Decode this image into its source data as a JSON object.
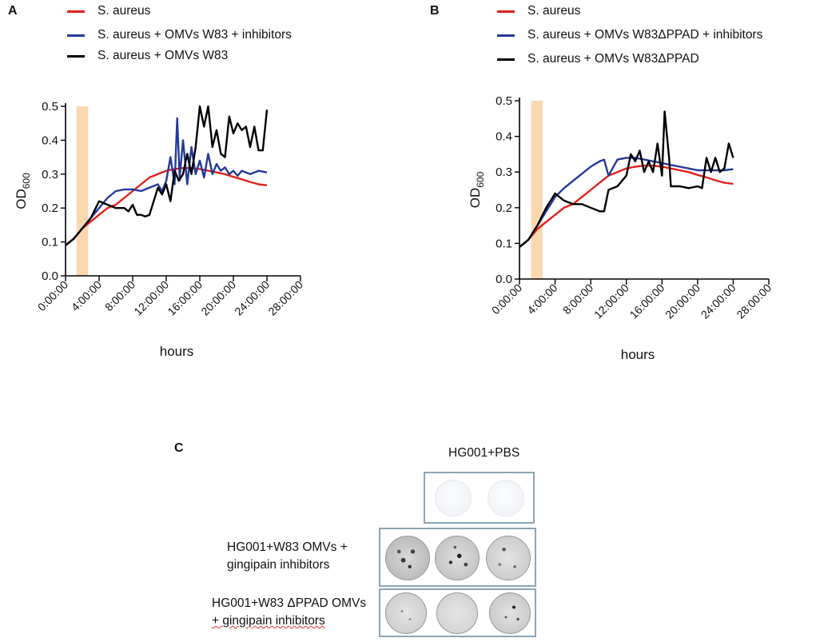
{
  "panels": [
    {
      "label": "A",
      "legend": [
        {
          "name": "S. aureus",
          "color": "#e0201c"
        },
        {
          "name": "S. aureus + OMVs W83 +  inhibitors",
          "color": "#24399a"
        },
        {
          "name": "S. aureus + OMVs W83",
          "color": "#000000"
        }
      ]
    },
    {
      "label": "B",
      "legend": [
        {
          "name": "S. aureus",
          "color": "#e0201c"
        },
        {
          "name": "S. aureus + OMVs W83ΔPPAD +  inhibitors",
          "color": "#24399a"
        },
        {
          "name": "S. aureus + OMVs W83ΔPPAD",
          "color": "#000000"
        }
      ]
    }
  ],
  "chart_data": [
    {
      "type": "line",
      "panel": "A",
      "title": "",
      "xlabel": "hours",
      "ylabel": "OD",
      "ylabel_sub": "600",
      "xlim": [
        0,
        28
      ],
      "ylim": [
        0,
        0.5
      ],
      "xticks": [
        0,
        4,
        8,
        12,
        16,
        20,
        24,
        28
      ],
      "xtick_labels": [
        "0:00:00",
        "4:00:00",
        "8:00:00",
        "12:00:00",
        "16:00:00",
        "20:00:00",
        "24:00:00",
        "28:00:00"
      ],
      "yticks": [
        0.0,
        0.1,
        0.2,
        0.3,
        0.4,
        0.5
      ],
      "ytick_labels": [
        "0.0",
        "0.1",
        "0.2",
        "0.3",
        "0.4",
        "0.5"
      ],
      "highlight_band": {
        "x_start": 1.3,
        "x_end": 2.7,
        "color": "#fbd8b0"
      },
      "series": [
        {
          "name": "S. aureus",
          "color": "#e0201c",
          "x": [
            0,
            1,
            2,
            3,
            4,
            5,
            6,
            7,
            8,
            9,
            10,
            11,
            12,
            13,
            14,
            15,
            16,
            17,
            18,
            19,
            20,
            21,
            22,
            23,
            24
          ],
          "y": [
            0.09,
            0.11,
            0.14,
            0.16,
            0.18,
            0.2,
            0.21,
            0.23,
            0.25,
            0.27,
            0.29,
            0.3,
            0.31,
            0.315,
            0.318,
            0.318,
            0.315,
            0.31,
            0.305,
            0.3,
            0.292,
            0.285,
            0.277,
            0.27,
            0.267
          ]
        },
        {
          "name": "S. aureus + OMVs W83 +  inhibitors",
          "color": "#24399a",
          "x": [
            0,
            1,
            2,
            3,
            4,
            5,
            6,
            7,
            8,
            9,
            10,
            11,
            11.5,
            12,
            12.5,
            13,
            13.3,
            13.6,
            14,
            14.5,
            15,
            15.5,
            16,
            16.5,
            17,
            17.5,
            18,
            18.5,
            19,
            19.5,
            20,
            20.5,
            21,
            22,
            23,
            24
          ],
          "y": [
            0.09,
            0.11,
            0.14,
            0.17,
            0.2,
            0.23,
            0.25,
            0.255,
            0.255,
            0.25,
            0.26,
            0.27,
            0.25,
            0.28,
            0.35,
            0.27,
            0.465,
            0.29,
            0.4,
            0.27,
            0.38,
            0.3,
            0.34,
            0.29,
            0.36,
            0.3,
            0.33,
            0.31,
            0.32,
            0.3,
            0.31,
            0.295,
            0.31,
            0.3,
            0.31,
            0.305
          ]
        },
        {
          "name": "S. aureus + OMVs W83",
          "color": "#000000",
          "x": [
            0,
            1,
            2,
            3,
            4,
            5,
            6,
            7,
            7.5,
            8,
            8.5,
            9,
            9.5,
            10,
            10.5,
            11,
            11.5,
            12,
            12.5,
            13,
            13.5,
            14,
            14.5,
            15,
            15.5,
            16,
            16.5,
            17,
            17.5,
            18,
            18.5,
            19,
            19.5,
            20,
            20.5,
            21,
            21.5,
            22,
            22.5,
            23,
            23.5,
            24
          ],
          "y": [
            0.09,
            0.11,
            0.14,
            0.17,
            0.22,
            0.21,
            0.2,
            0.2,
            0.19,
            0.21,
            0.18,
            0.18,
            0.175,
            0.18,
            0.22,
            0.26,
            0.24,
            0.27,
            0.22,
            0.31,
            0.28,
            0.3,
            0.36,
            0.3,
            0.38,
            0.5,
            0.44,
            0.5,
            0.38,
            0.43,
            0.36,
            0.35,
            0.47,
            0.42,
            0.45,
            0.43,
            0.44,
            0.38,
            0.44,
            0.37,
            0.37,
            0.49
          ]
        }
      ]
    },
    {
      "type": "line",
      "panel": "B",
      "title": "",
      "xlabel": "hours",
      "ylabel": "OD",
      "ylabel_sub": "600",
      "xlim": [
        0,
        28
      ],
      "ylim": [
        0,
        0.5
      ],
      "xticks": [
        0,
        4,
        8,
        12,
        16,
        20,
        24,
        28
      ],
      "xtick_labels": [
        "0:00:00",
        "4:00:00",
        "8:00:00",
        "12:00:00",
        "16:00:00",
        "20:00:00",
        "24:00:00",
        "28:00:00"
      ],
      "yticks": [
        0.0,
        0.1,
        0.2,
        0.3,
        0.4,
        0.5
      ],
      "ytick_labels": [
        "0.0",
        "0.1",
        "0.2",
        "0.3",
        "0.4",
        "0.5"
      ],
      "highlight_band": {
        "x_start": 1.3,
        "x_end": 2.6,
        "color": "#fbd8b0"
      },
      "series": [
        {
          "name": "S. aureus",
          "color": "#e0201c",
          "x": [
            0,
            1,
            2,
            3,
            4,
            5,
            6,
            7,
            8,
            9,
            10,
            11,
            12,
            13,
            14,
            15,
            16,
            17,
            18,
            19,
            20,
            21,
            22,
            23,
            24
          ],
          "y": [
            0.09,
            0.11,
            0.14,
            0.16,
            0.18,
            0.2,
            0.21,
            0.23,
            0.25,
            0.27,
            0.29,
            0.3,
            0.31,
            0.315,
            0.318,
            0.318,
            0.315,
            0.31,
            0.305,
            0.3,
            0.292,
            0.285,
            0.277,
            0.27,
            0.267
          ]
        },
        {
          "name": "S. aureus + OMVs W83ΔPPAD +  inhibitors",
          "color": "#24399a",
          "x": [
            0,
            1,
            2,
            3,
            4,
            5,
            6,
            7,
            8,
            9,
            9.5,
            10,
            11,
            12,
            13,
            14,
            15,
            16,
            17,
            18,
            19,
            20,
            21,
            22,
            23,
            24
          ],
          "y": [
            0.09,
            0.11,
            0.15,
            0.19,
            0.23,
            0.255,
            0.275,
            0.295,
            0.315,
            0.33,
            0.335,
            0.29,
            0.335,
            0.34,
            0.34,
            0.335,
            0.33,
            0.325,
            0.32,
            0.315,
            0.31,
            0.305,
            0.305,
            0.305,
            0.305,
            0.308
          ]
        },
        {
          "name": "S. aureus + OMVs W83ΔPPAD",
          "color": "#000000",
          "x": [
            0,
            1,
            2,
            3,
            4,
            5,
            6,
            7,
            8,
            9,
            9.5,
            10,
            11,
            12,
            12.5,
            13,
            13.5,
            14,
            14.5,
            15,
            15.5,
            16,
            16.3,
            16.8,
            17,
            18,
            19,
            20,
            20.5,
            21,
            21.5,
            22,
            22.5,
            23,
            23.5,
            24
          ],
          "y": [
            0.09,
            0.11,
            0.15,
            0.2,
            0.24,
            0.22,
            0.21,
            0.21,
            0.2,
            0.19,
            0.19,
            0.25,
            0.26,
            0.29,
            0.35,
            0.33,
            0.36,
            0.3,
            0.33,
            0.3,
            0.38,
            0.29,
            0.47,
            0.34,
            0.26,
            0.26,
            0.255,
            0.26,
            0.255,
            0.34,
            0.3,
            0.34,
            0.3,
            0.31,
            0.38,
            0.34
          ]
        }
      ]
    }
  ],
  "panel_c": {
    "label": "C",
    "header": "HG001+PBS",
    "rows": [
      {
        "label_line1": "",
        "label_line2": "",
        "dish_count": 2
      },
      {
        "label_line1": "HG001+W83 OMVs +",
        "label_line2": "gingipain inhibitors",
        "dish_count": 3
      },
      {
        "label_line1": "HG001+W83 ΔPPAD OMVs",
        "label_line2": "+ gingipain inhibitors",
        "dish_count": 3
      }
    ]
  }
}
